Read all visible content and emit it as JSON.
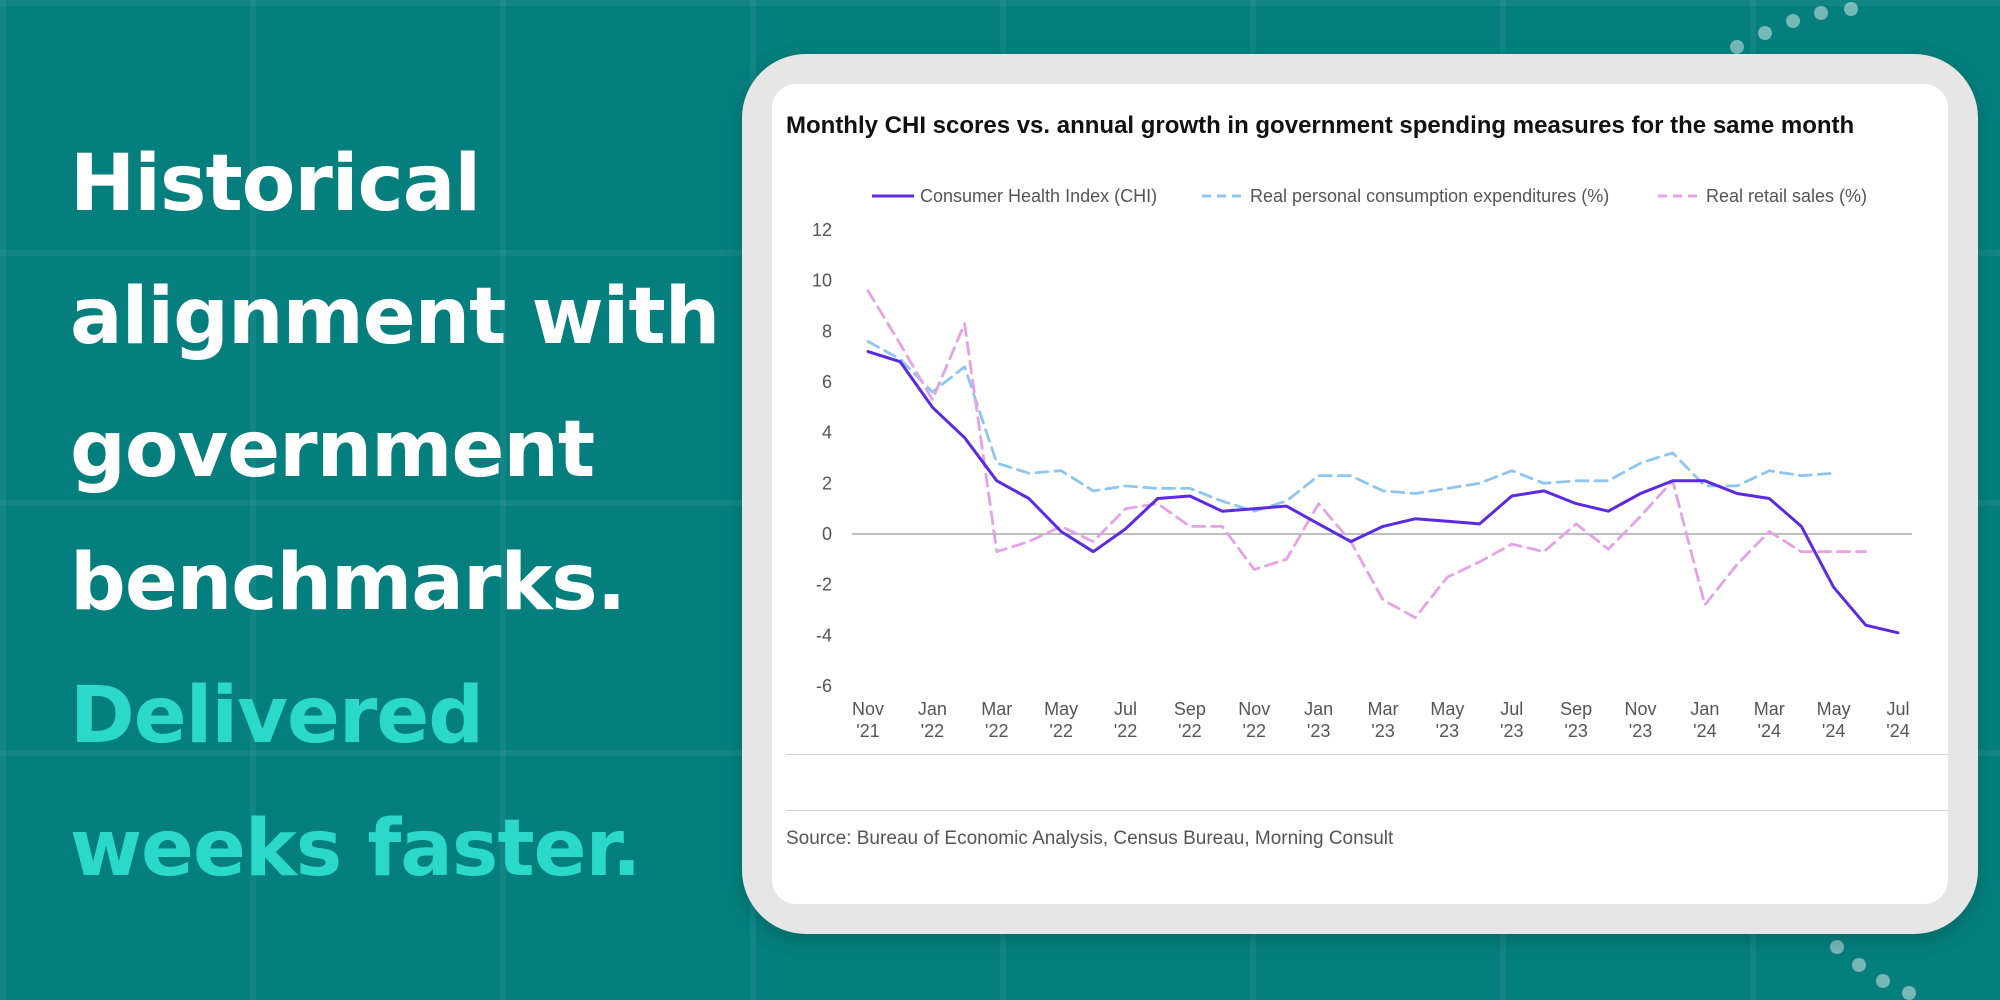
{
  "headline": {
    "lines": [
      "Historical",
      "alignment with",
      "government",
      "benchmarks."
    ],
    "accent_lines": [
      "Delivered",
      "weeks faster."
    ]
  },
  "colors": {
    "background": "#047f7d",
    "headline": "#ffffff",
    "accent": "#2bd9cb"
  },
  "source": "Source: Bureau of Economic Analysis, Census Bureau, Morning Consult",
  "chart_data": {
    "type": "line",
    "title": "Monthly CHI scores vs. annual growth in government spending measures for the same month",
    "xlabel": "",
    "ylabel": "",
    "ylim": [
      -6,
      12
    ],
    "yticks": [
      12,
      10,
      8,
      6,
      4,
      2,
      0,
      -2,
      -4,
      -6
    ],
    "legend_position": "top",
    "grid": false,
    "x": [
      "Nov '21",
      "Dec '21",
      "Jan '22",
      "Feb '22",
      "Mar '22",
      "Apr '22",
      "May '22",
      "Jun '22",
      "Jul '22",
      "Aug '22",
      "Sep '22",
      "Oct '22",
      "Nov '22",
      "Dec '22",
      "Jan '23",
      "Feb '23",
      "Mar '23",
      "Apr '23",
      "May '23",
      "Jun '23",
      "Jul '23",
      "Aug '23",
      "Sep '23",
      "Oct '23",
      "Nov '23",
      "Dec '23",
      "Jan '24",
      "Feb '24",
      "Mar '24",
      "Apr '24",
      "May '24",
      "Jun '24",
      "Jul '24"
    ],
    "xtick_labels": [
      {
        "month": "Nov",
        "year": "'21"
      },
      {
        "month": "Jan",
        "year": "'22"
      },
      {
        "month": "Mar",
        "year": "'22"
      },
      {
        "month": "May",
        "year": "'22"
      },
      {
        "month": "Jul",
        "year": "'22"
      },
      {
        "month": "Sep",
        "year": "'22"
      },
      {
        "month": "Nov",
        "year": "'22"
      },
      {
        "month": "Jan",
        "year": "'23"
      },
      {
        "month": "Mar",
        "year": "'23"
      },
      {
        "month": "May",
        "year": "'23"
      },
      {
        "month": "Jul",
        "year": "'23"
      },
      {
        "month": "Sep",
        "year": "'23"
      },
      {
        "month": "Nov",
        "year": "'23"
      },
      {
        "month": "Jan",
        "year": "'24"
      },
      {
        "month": "Mar",
        "year": "'24"
      },
      {
        "month": "May",
        "year": "'24"
      },
      {
        "month": "Jul",
        "year": "'24"
      }
    ],
    "series": [
      {
        "name": "Consumer Health Index (CHI)",
        "color": "#5b2be0",
        "dash": "solid",
        "values": [
          7.2,
          6.8,
          5.0,
          3.8,
          2.1,
          1.4,
          0.1,
          -0.7,
          0.2,
          1.4,
          1.5,
          0.9,
          1.0,
          1.1,
          0.4,
          -0.3,
          0.3,
          0.6,
          0.5,
          0.4,
          1.5,
          1.7,
          1.2,
          0.9,
          1.6,
          2.1,
          2.1,
          1.6,
          1.4,
          0.3,
          -2.1,
          -3.6,
          -3.9
        ]
      },
      {
        "name": "Real personal consumption expenditures (%)",
        "color": "#8ec6f2",
        "dash": "dashed",
        "values": [
          7.6,
          6.9,
          5.6,
          6.6,
          2.8,
          2.4,
          2.5,
          1.7,
          1.9,
          1.8,
          1.8,
          1.3,
          0.9,
          1.3,
          2.3,
          2.3,
          1.7,
          1.6,
          1.8,
          2.0,
          2.5,
          2.0,
          2.1,
          2.1,
          2.8,
          3.2,
          1.9,
          1.9,
          2.5,
          2.3,
          2.4,
          null,
          null
        ]
      },
      {
        "name": "Real retail sales (%)",
        "color": "#e4a3e4",
        "dash": "dashed",
        "values": [
          9.6,
          7.5,
          5.3,
          8.3,
          -0.7,
          -0.3,
          0.3,
          -0.3,
          1.0,
          1.2,
          0.3,
          0.3,
          -1.4,
          -1.0,
          1.2,
          -0.3,
          -2.6,
          -3.3,
          -1.7,
          -1.1,
          -0.4,
          -0.7,
          0.4,
          -0.6,
          0.7,
          2.1,
          -2.8,
          -1.2,
          0.1,
          -0.7,
          -0.7,
          -0.7,
          null
        ]
      }
    ]
  }
}
